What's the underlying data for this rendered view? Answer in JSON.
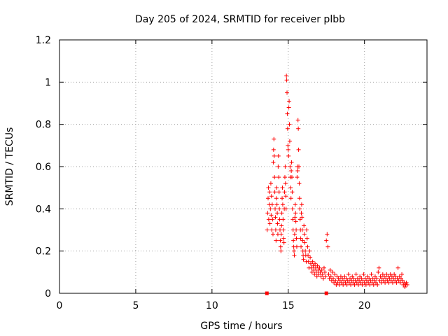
{
  "chart_data": {
    "type": "scatter",
    "title": "Day 205 of 2024, SRMTID for receiver plbb",
    "xlabel": "GPS time / hours",
    "ylabel": "SRMTID / TECUs",
    "xlim": [
      0,
      24.1
    ],
    "ylim": [
      0,
      1.2
    ],
    "xticks": [
      0,
      5,
      10,
      15,
      20
    ],
    "xtick_labels": [
      "0",
      "5",
      "10",
      "15",
      "20"
    ],
    "yticks": [
      0,
      0.2,
      0.4,
      0.6,
      0.8,
      1.0,
      1.2
    ],
    "ytick_labels": [
      "0",
      "0.2",
      "0.4",
      "0.6",
      "0.8",
      "1",
      "1.2"
    ],
    "grid": true,
    "marker": "+",
    "color": "#ff0000",
    "square_markers": [
      {
        "x": 13.6,
        "y": 0.0
      },
      {
        "x": 17.5,
        "y": 0.0
      }
    ],
    "series": [
      {
        "name": "SRMTID",
        "points": [
          [
            13.62,
            0.3
          ],
          [
            13.65,
            0.38
          ],
          [
            13.68,
            0.45
          ],
          [
            13.7,
            0.5
          ],
          [
            13.72,
            0.35
          ],
          [
            13.75,
            0.42
          ],
          [
            13.78,
            0.48
          ],
          [
            13.8,
            0.33
          ],
          [
            13.83,
            0.4
          ],
          [
            13.86,
            0.52
          ],
          [
            13.88,
            0.37
          ],
          [
            13.9,
            0.46
          ],
          [
            13.92,
            0.3
          ],
          [
            13.95,
            0.42
          ],
          [
            13.97,
            0.35
          ],
          [
            14.0,
            0.28
          ],
          [
            14.02,
            0.62
          ],
          [
            14.04,
            0.68
          ],
          [
            14.06,
            0.73
          ],
          [
            14.08,
            0.65
          ],
          [
            14.1,
            0.55
          ],
          [
            14.12,
            0.48
          ],
          [
            14.14,
            0.4
          ],
          [
            14.16,
            0.36
          ],
          [
            14.18,
            0.3
          ],
          [
            14.2,
            0.25
          ],
          [
            14.22,
            0.45
          ],
          [
            14.24,
            0.5
          ],
          [
            14.26,
            0.42
          ],
          [
            14.28,
            0.38
          ],
          [
            14.3,
            0.33
          ],
          [
            14.32,
            0.28
          ],
          [
            14.34,
            0.6
          ],
          [
            14.36,
            0.65
          ],
          [
            14.38,
            0.55
          ],
          [
            14.4,
            0.48
          ],
          [
            14.42,
            0.4
          ],
          [
            14.44,
            0.35
          ],
          [
            14.46,
            0.3
          ],
          [
            14.48,
            0.25
          ],
          [
            14.5,
            0.22
          ],
          [
            14.52,
            0.2
          ],
          [
            14.54,
            0.28
          ],
          [
            14.56,
            0.32
          ],
          [
            14.58,
            0.38
          ],
          [
            14.6,
            0.45
          ],
          [
            14.62,
            0.5
          ],
          [
            14.64,
            0.42
          ],
          [
            14.66,
            0.35
          ],
          [
            14.68,
            0.3
          ],
          [
            14.7,
            0.26
          ],
          [
            14.72,
            0.24
          ],
          [
            14.74,
            0.4
          ],
          [
            14.76,
            0.48
          ],
          [
            14.78,
            0.55
          ],
          [
            14.8,
            0.6
          ],
          [
            14.82,
            0.52
          ],
          [
            14.84,
            0.46
          ],
          [
            14.86,
            0.4
          ],
          [
            14.88,
            1.03
          ],
          [
            14.9,
            1.01
          ],
          [
            14.92,
            0.95
          ],
          [
            14.94,
            0.85
          ],
          [
            14.96,
            0.78
          ],
          [
            14.98,
            0.7
          ],
          [
            15.0,
            0.68
          ],
          [
            15.02,
            0.65
          ],
          [
            15.04,
            0.88
          ],
          [
            15.06,
            0.91
          ],
          [
            15.08,
            0.8
          ],
          [
            15.1,
            0.72
          ],
          [
            15.12,
            0.6
          ],
          [
            15.14,
            0.55
          ],
          [
            15.16,
            0.5
          ],
          [
            15.18,
            0.45
          ],
          [
            15.2,
            0.58
          ],
          [
            15.22,
            0.62
          ],
          [
            15.24,
            0.55
          ],
          [
            15.26,
            0.48
          ],
          [
            15.28,
            0.4
          ],
          [
            15.3,
            0.35
          ],
          [
            15.32,
            0.3
          ],
          [
            15.34,
            0.25
          ],
          [
            15.36,
            0.22
          ],
          [
            15.38,
            0.2
          ],
          [
            15.4,
            0.18
          ],
          [
            15.42,
            0.28
          ],
          [
            15.44,
            0.36
          ],
          [
            15.46,
            0.42
          ],
          [
            15.48,
            0.38
          ],
          [
            15.5,
            0.34
          ],
          [
            15.52,
            0.3
          ],
          [
            15.54,
            0.26
          ],
          [
            15.56,
            0.22
          ],
          [
            15.58,
            0.55
          ],
          [
            15.6,
            0.6
          ],
          [
            15.62,
            0.58
          ],
          [
            15.64,
            0.82
          ],
          [
            15.66,
            0.78
          ],
          [
            15.68,
            0.68
          ],
          [
            15.7,
            0.6
          ],
          [
            15.72,
            0.52
          ],
          [
            15.74,
            0.45
          ],
          [
            15.76,
            0.4
          ],
          [
            15.78,
            0.35
          ],
          [
            15.8,
            0.3
          ],
          [
            15.82,
            0.26
          ],
          [
            15.84,
            0.22
          ],
          [
            15.86,
            0.38
          ],
          [
            15.88,
            0.42
          ],
          [
            15.9,
            0.36
          ],
          [
            15.92,
            0.3
          ],
          [
            15.94,
            0.25
          ],
          [
            15.96,
            0.2
          ],
          [
            15.98,
            0.18
          ],
          [
            16.0,
            0.16
          ],
          [
            16.03,
            0.32
          ],
          [
            16.06,
            0.28
          ],
          [
            16.09,
            0.24
          ],
          [
            16.12,
            0.2
          ],
          [
            16.15,
            0.18
          ],
          [
            16.18,
            0.15
          ],
          [
            16.21,
            0.3
          ],
          [
            16.24,
            0.26
          ],
          [
            16.27,
            0.22
          ],
          [
            16.3,
            0.18
          ],
          [
            16.33,
            0.15
          ],
          [
            16.36,
            0.12
          ],
          [
            16.4,
            0.2
          ],
          [
            16.44,
            0.17
          ],
          [
            16.48,
            0.14
          ],
          [
            16.52,
            0.12
          ],
          [
            16.56,
            0.1
          ],
          [
            16.6,
            0.15
          ],
          [
            16.64,
            0.13
          ],
          [
            16.68,
            0.11
          ],
          [
            16.72,
            0.09
          ],
          [
            16.76,
            0.14
          ],
          [
            16.8,
            0.12
          ],
          [
            16.84,
            0.1
          ],
          [
            16.88,
            0.08
          ],
          [
            16.92,
            0.13
          ],
          [
            16.96,
            0.11
          ],
          [
            17.0,
            0.09
          ],
          [
            17.05,
            0.12
          ],
          [
            17.1,
            0.1
          ],
          [
            17.15,
            0.08
          ],
          [
            17.2,
            0.11
          ],
          [
            17.25,
            0.09
          ],
          [
            17.3,
            0.07
          ],
          [
            17.35,
            0.12
          ],
          [
            17.4,
            0.1
          ],
          [
            17.45,
            0.08
          ],
          [
            17.5,
            0.25
          ],
          [
            17.55,
            0.28
          ],
          [
            17.6,
            0.22
          ],
          [
            17.65,
            0.09
          ],
          [
            17.7,
            0.07
          ],
          [
            17.75,
            0.11
          ],
          [
            17.8,
            0.08
          ],
          [
            17.85,
            0.06
          ],
          [
            17.9,
            0.1
          ],
          [
            17.95,
            0.07
          ],
          [
            18.0,
            0.05
          ],
          [
            18.05,
            0.09
          ],
          [
            18.1,
            0.06
          ],
          [
            18.15,
            0.04
          ],
          [
            18.2,
            0.08
          ],
          [
            18.25,
            0.05
          ],
          [
            18.3,
            0.07
          ],
          [
            18.35,
            0.04
          ],
          [
            18.4,
            0.06
          ],
          [
            18.45,
            0.08
          ],
          [
            18.5,
            0.05
          ],
          [
            18.55,
            0.07
          ],
          [
            18.6,
            0.04
          ],
          [
            18.65,
            0.06
          ],
          [
            18.7,
            0.08
          ],
          [
            18.75,
            0.05
          ],
          [
            18.8,
            0.07
          ],
          [
            18.85,
            0.04
          ],
          [
            18.9,
            0.06
          ],
          [
            18.95,
            0.09
          ],
          [
            19.0,
            0.05
          ],
          [
            19.05,
            0.07
          ],
          [
            19.1,
            0.04
          ],
          [
            19.15,
            0.06
          ],
          [
            19.2,
            0.08
          ],
          [
            19.25,
            0.05
          ],
          [
            19.3,
            0.07
          ],
          [
            19.35,
            0.04
          ],
          [
            19.4,
            0.06
          ],
          [
            19.45,
            0.09
          ],
          [
            19.5,
            0.05
          ],
          [
            19.55,
            0.07
          ],
          [
            19.6,
            0.04
          ],
          [
            19.65,
            0.06
          ],
          [
            19.7,
            0.08
          ],
          [
            19.75,
            0.05
          ],
          [
            19.8,
            0.07
          ],
          [
            19.85,
            0.04
          ],
          [
            19.9,
            0.06
          ],
          [
            19.95,
            0.09
          ],
          [
            20.0,
            0.05
          ],
          [
            20.05,
            0.07
          ],
          [
            20.1,
            0.04
          ],
          [
            20.15,
            0.06
          ],
          [
            20.2,
            0.08
          ],
          [
            20.25,
            0.05
          ],
          [
            20.3,
            0.07
          ],
          [
            20.35,
            0.04
          ],
          [
            20.4,
            0.06
          ],
          [
            20.45,
            0.09
          ],
          [
            20.5,
            0.05
          ],
          [
            20.55,
            0.07
          ],
          [
            20.6,
            0.04
          ],
          [
            20.65,
            0.06
          ],
          [
            20.7,
            0.08
          ],
          [
            20.75,
            0.05
          ],
          [
            20.8,
            0.07
          ],
          [
            20.85,
            0.04
          ],
          [
            20.9,
            0.1
          ],
          [
            20.95,
            0.12
          ],
          [
            21.0,
            0.06
          ],
          [
            21.05,
            0.08
          ],
          [
            21.1,
            0.05
          ],
          [
            21.15,
            0.07
          ],
          [
            21.2,
            0.09
          ],
          [
            21.25,
            0.06
          ],
          [
            21.3,
            0.08
          ],
          [
            21.35,
            0.05
          ],
          [
            21.4,
            0.07
          ],
          [
            21.45,
            0.09
          ],
          [
            21.5,
            0.06
          ],
          [
            21.55,
            0.08
          ],
          [
            21.6,
            0.05
          ],
          [
            21.65,
            0.07
          ],
          [
            21.7,
            0.09
          ],
          [
            21.75,
            0.06
          ],
          [
            21.8,
            0.08
          ],
          [
            21.85,
            0.05
          ],
          [
            21.9,
            0.07
          ],
          [
            21.95,
            0.09
          ],
          [
            22.0,
            0.06
          ],
          [
            22.05,
            0.08
          ],
          [
            22.1,
            0.05
          ],
          [
            22.15,
            0.07
          ],
          [
            22.2,
            0.12
          ],
          [
            22.25,
            0.06
          ],
          [
            22.3,
            0.08
          ],
          [
            22.35,
            0.05
          ],
          [
            22.4,
            0.07
          ],
          [
            22.45,
            0.09
          ],
          [
            22.5,
            0.06
          ],
          [
            22.55,
            0.04
          ],
          [
            22.6,
            0.05
          ],
          [
            22.65,
            0.03
          ],
          [
            22.7,
            0.04
          ],
          [
            22.75,
            0.05
          ],
          [
            22.8,
            0.04
          ]
        ]
      }
    ]
  }
}
